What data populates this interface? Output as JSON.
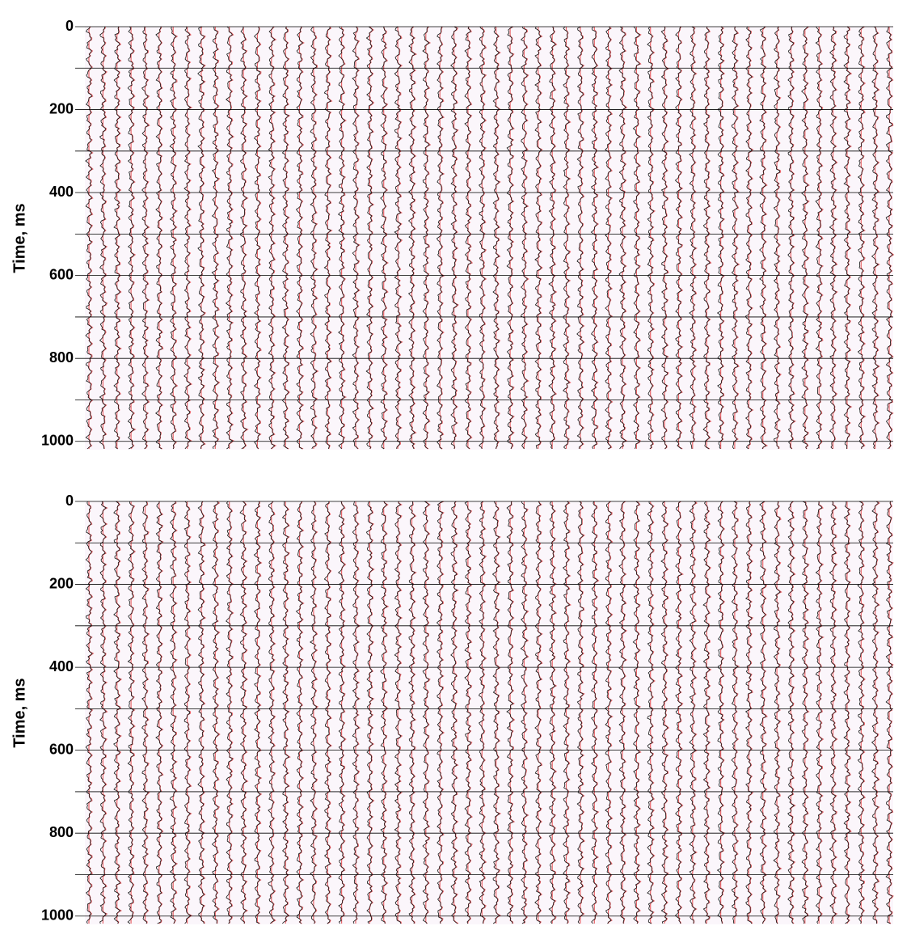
{
  "chart_data": [
    {
      "type": "seismic",
      "ylabel": "Time, ms",
      "ylim": [
        0,
        1020
      ],
      "yticks": [
        0,
        200,
        400,
        600,
        800,
        1000
      ],
      "minor_yticks": [
        100,
        300,
        500,
        700,
        900
      ],
      "grid": true
    },
    {
      "type": "seismic",
      "ylabel": "Time, ms",
      "ylim": [
        0,
        1020
      ],
      "yticks": [
        0,
        200,
        400,
        600,
        800,
        1000
      ],
      "minor_yticks": [
        100,
        300,
        500,
        700,
        900
      ],
      "grid": true
    }
  ]
}
